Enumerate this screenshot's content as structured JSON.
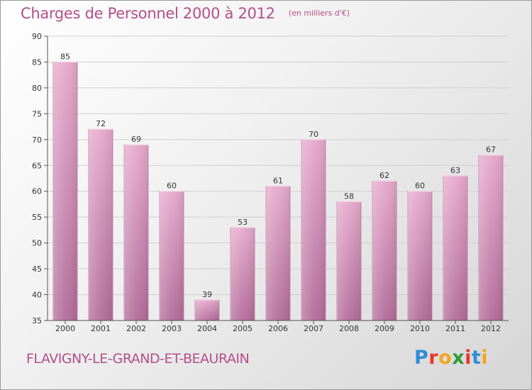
{
  "header": {
    "title": "Charges de Personnel 2000 à 2012",
    "subtitle": "(en milliers d'€)"
  },
  "footer": {
    "commune": "FLAVIGNY-LE-GRAND-ET-BEAURAIN",
    "logo_text": "Proxiti",
    "logo_colors": [
      "#2e8ed8",
      "#e8372b",
      "#f3a51c",
      "#2f9a39",
      "#e8372b",
      "#2e8ed8",
      "#f3a51c"
    ]
  },
  "colors": {
    "bar_light": "#e6a9cc",
    "bar_dark": "#b26c99",
    "grid": "#cfcfcf",
    "axis": "#555555",
    "accent": "#b24f8c"
  },
  "chart_data": {
    "type": "bar",
    "categories": [
      "2000",
      "2001",
      "2002",
      "2003",
      "2004",
      "2005",
      "2006",
      "2007",
      "2008",
      "2009",
      "2010",
      "2011",
      "2012"
    ],
    "values": [
      85,
      72,
      69,
      60,
      39,
      53,
      61,
      70,
      58,
      62,
      60,
      63,
      67
    ],
    "ylim": [
      35,
      90
    ],
    "yticks": [
      35,
      40,
      45,
      50,
      55,
      60,
      65,
      70,
      75,
      80,
      85,
      90
    ],
    "grid": true,
    "data_labels": true
  }
}
